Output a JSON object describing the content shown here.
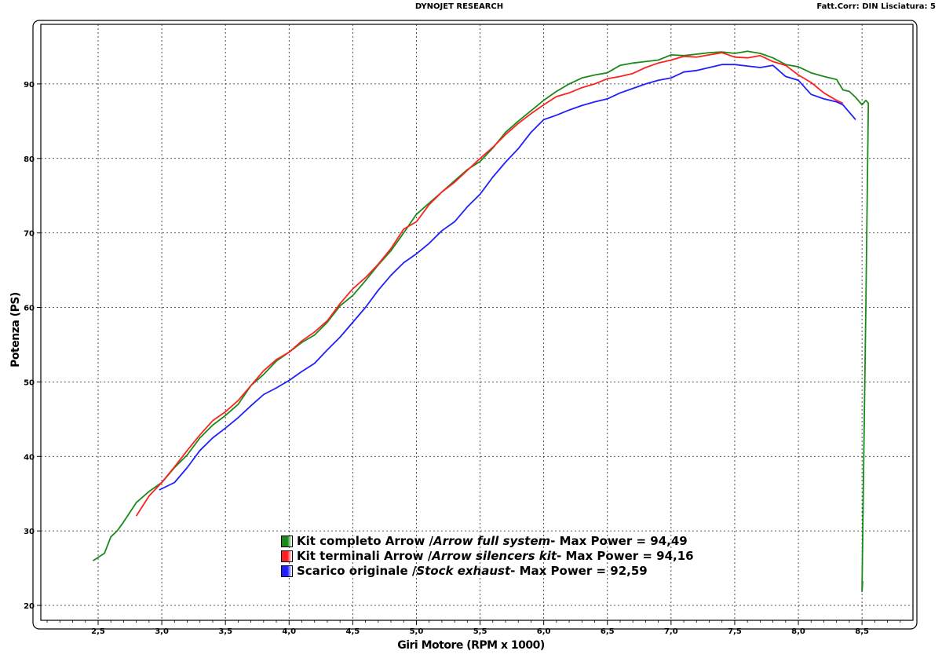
{
  "header": {
    "center": "DYNOJET RESEARCH",
    "right": "Fatt.Corr: DIN  Lisciatura: 5"
  },
  "legend": {
    "items": [
      {
        "a": "Kit completo Arrow / ",
        "b": "Arrow full system",
        "c": " - Max Power = 94,49",
        "color": "#1a8a1a"
      },
      {
        "a": "Kit terminali Arrow / ",
        "b": "Arrow silencers kit",
        "c": " - Max Power = 94,16",
        "color": "#ff2020"
      },
      {
        "a": "Scarico originale / ",
        "b": "Stock exhaust",
        "c": " - Max Power = 92,59",
        "color": "#2020ff"
      }
    ]
  },
  "chart_data": {
    "type": "line",
    "xlabel": "Giri Motore (RPM x 1000)",
    "ylabel": "Potenza (PS)",
    "xlim": [
      2.05,
      8.9
    ],
    "ylim": [
      18,
      98
    ],
    "xticks": [
      "2,5",
      "3,0",
      "3,5",
      "4,0",
      "4,5",
      "5,0",
      "5,5",
      "6,0",
      "6,5",
      "7,0",
      "7,5",
      "8,0",
      "8,5"
    ],
    "xtick_values": [
      2.5,
      3.0,
      3.5,
      4.0,
      4.5,
      5.0,
      5.5,
      6.0,
      6.5,
      7.0,
      7.5,
      8.0,
      8.5
    ],
    "yticks": [
      "20",
      "30",
      "40",
      "50",
      "60",
      "70",
      "80",
      "90"
    ],
    "ytick_values": [
      20,
      30,
      40,
      50,
      60,
      70,
      80,
      90
    ],
    "grid": true,
    "series": [
      {
        "name": "Kit completo Arrow / Arrow full system",
        "color": "#1a8a1a",
        "x": [
          2.46,
          2.55,
          2.6,
          2.65,
          2.7,
          2.8,
          2.9,
          3.0,
          3.1,
          3.2,
          3.3,
          3.4,
          3.5,
          3.6,
          3.7,
          3.8,
          3.9,
          4.0,
          4.1,
          4.2,
          4.3,
          4.4,
          4.5,
          4.6,
          4.7,
          4.8,
          4.9,
          5.0,
          5.1,
          5.2,
          5.3,
          5.4,
          5.5,
          5.6,
          5.7,
          5.8,
          5.9,
          6.0,
          6.1,
          6.2,
          6.3,
          6.4,
          6.5,
          6.6,
          6.7,
          6.8,
          6.9,
          7.0,
          7.1,
          7.2,
          7.3,
          7.4,
          7.5,
          7.6,
          7.7,
          7.8,
          7.9,
          8.0,
          8.1,
          8.2,
          8.3,
          8.35,
          8.4,
          8.45,
          8.5,
          8.53,
          8.55,
          8.53,
          8.51,
          8.5,
          8.505,
          8.5
        ],
        "y": [
          26.0,
          27.0,
          29.2,
          30.0,
          31.2,
          33.8,
          35.3,
          36.5,
          38.5,
          40.2,
          42.5,
          44.2,
          45.5,
          47.0,
          49.5,
          51.0,
          52.8,
          54.0,
          55.3,
          56.3,
          58.0,
          60.2,
          61.6,
          63.6,
          65.7,
          67.6,
          70.0,
          72.5,
          74.0,
          75.5,
          77.0,
          78.5,
          79.6,
          81.4,
          83.5,
          85.0,
          86.4,
          87.8,
          89.0,
          90.0,
          90.8,
          91.2,
          91.5,
          92.5,
          92.8,
          93.0,
          93.2,
          93.9,
          93.8,
          94.0,
          94.2,
          94.3,
          94.1,
          94.4,
          94.1,
          93.5,
          92.6,
          92.3,
          91.5,
          91.0,
          90.6,
          89.2,
          89.0,
          88.2,
          87.2,
          87.8,
          87.4,
          60.0,
          35.0,
          22.0,
          23.2,
          21.8
        ]
      },
      {
        "name": "Kit terminali Arrow / Arrow silencers kit",
        "color": "#ff2020",
        "x": [
          2.8,
          2.9,
          3.0,
          3.1,
          3.2,
          3.3,
          3.4,
          3.5,
          3.6,
          3.7,
          3.8,
          3.9,
          4.0,
          4.1,
          4.2,
          4.3,
          4.4,
          4.5,
          4.6,
          4.7,
          4.8,
          4.9,
          5.0,
          5.1,
          5.2,
          5.3,
          5.4,
          5.5,
          5.6,
          5.7,
          5.8,
          5.9,
          6.0,
          6.1,
          6.2,
          6.3,
          6.4,
          6.5,
          6.6,
          6.7,
          6.8,
          6.9,
          7.0,
          7.1,
          7.2,
          7.3,
          7.4,
          7.5,
          7.6,
          7.7,
          7.8,
          7.9,
          8.0,
          8.1,
          8.2,
          8.3,
          8.35
        ],
        "y": [
          32.0,
          34.7,
          36.5,
          38.6,
          40.8,
          42.9,
          44.8,
          46.0,
          47.5,
          49.5,
          51.5,
          53.0,
          54.0,
          55.5,
          56.7,
          58.2,
          60.5,
          62.5,
          64.0,
          65.8,
          67.9,
          70.5,
          71.5,
          73.8,
          75.5,
          76.8,
          78.4,
          80.0,
          81.5,
          83.2,
          84.7,
          86.0,
          87.2,
          88.3,
          88.8,
          89.5,
          90.0,
          90.7,
          91.0,
          91.4,
          92.2,
          92.8,
          93.2,
          93.7,
          93.6,
          93.9,
          94.2,
          93.6,
          93.5,
          93.8,
          93.0,
          92.5,
          91.2,
          90.2,
          88.8,
          87.8,
          87.4
        ]
      },
      {
        "name": "Scarico originale / Stock exhaust",
        "color": "#2020ff",
        "x": [
          2.98,
          3.1,
          3.2,
          3.3,
          3.4,
          3.5,
          3.6,
          3.7,
          3.8,
          3.9,
          4.0,
          4.1,
          4.2,
          4.3,
          4.4,
          4.5,
          4.6,
          4.7,
          4.8,
          4.9,
          5.0,
          5.1,
          5.2,
          5.3,
          5.4,
          5.5,
          5.6,
          5.7,
          5.8,
          5.9,
          6.0,
          6.1,
          6.2,
          6.3,
          6.4,
          6.5,
          6.6,
          6.7,
          6.8,
          6.9,
          7.0,
          7.1,
          7.2,
          7.3,
          7.4,
          7.5,
          7.6,
          7.7,
          7.8,
          7.9,
          8.0,
          8.1,
          8.2,
          8.3,
          8.35,
          8.45
        ],
        "y": [
          35.5,
          36.5,
          38.5,
          40.8,
          42.5,
          43.8,
          45.2,
          46.8,
          48.3,
          49.2,
          50.2,
          51.4,
          52.5,
          54.3,
          56.0,
          58.0,
          60.0,
          62.3,
          64.3,
          66.0,
          67.2,
          68.6,
          70.3,
          71.5,
          73.5,
          75.2,
          77.5,
          79.5,
          81.3,
          83.5,
          85.2,
          85.8,
          86.5,
          87.1,
          87.6,
          88.0,
          88.8,
          89.4,
          90.0,
          90.5,
          90.8,
          91.6,
          91.8,
          92.2,
          92.6,
          92.6,
          92.4,
          92.2,
          92.5,
          91.0,
          90.5,
          88.6,
          88.0,
          87.6,
          87.2,
          85.2
        ]
      }
    ]
  }
}
